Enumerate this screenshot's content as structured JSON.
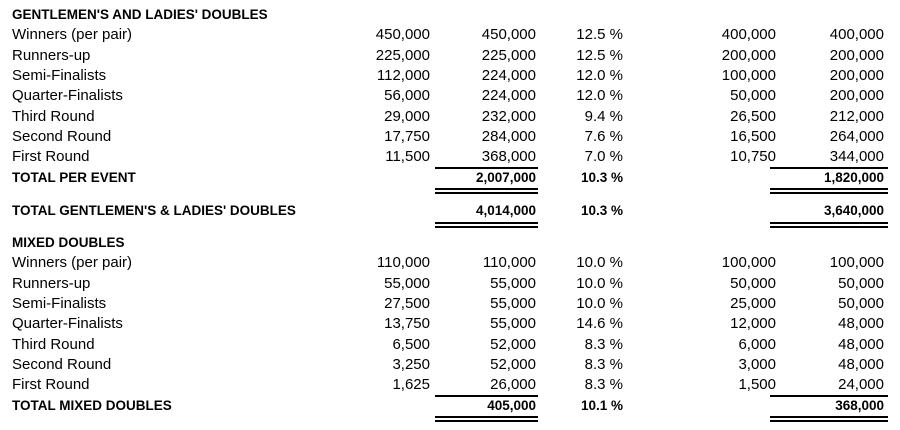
{
  "sections": [
    {
      "title": "GENTLEMEN'S AND LADIES' DOUBLES",
      "rows": [
        {
          "label": "Winners (per pair)",
          "values": [
            "450,000",
            "450,000",
            "12.5 %",
            "400,000",
            "400,000"
          ]
        },
        {
          "label": "Runners-up",
          "values": [
            "225,000",
            "225,000",
            "12.5 %",
            "200,000",
            "200,000"
          ]
        },
        {
          "label": "Semi-Finalists",
          "values": [
            "112,000",
            "224,000",
            "12.0 %",
            "100,000",
            "200,000"
          ]
        },
        {
          "label": "Quarter-Finalists",
          "values": [
            "56,000",
            "224,000",
            "12.0 %",
            "50,000",
            "200,000"
          ]
        },
        {
          "label": "Third Round",
          "values": [
            "29,000",
            "232,000",
            "9.4 %",
            "26,500",
            "212,000"
          ]
        },
        {
          "label": "Second Round",
          "values": [
            "17,750",
            "284,000",
            "7.6 %",
            "16,500",
            "264,000"
          ]
        },
        {
          "label": "First Round",
          "values": [
            "11,500",
            "368,000",
            "7.0 %",
            "10,750",
            "344,000"
          ]
        }
      ],
      "total": {
        "label": "TOTAL PER EVENT",
        "values": [
          "",
          "2,007,000",
          "10.3 %",
          "",
          "1,820,000"
        ]
      },
      "grand_total": {
        "label": "TOTAL GENTLEMEN'S & LADIES' DOUBLES",
        "values": [
          "",
          "4,014,000",
          "10.3 %",
          "",
          "3,640,000"
        ]
      }
    },
    {
      "title": "MIXED DOUBLES",
      "rows": [
        {
          "label": "Winners (per pair)",
          "values": [
            "110,000",
            "110,000",
            "10.0 %",
            "100,000",
            "100,000"
          ]
        },
        {
          "label": "Runners-up",
          "values": [
            "55,000",
            "55,000",
            "10.0 %",
            "50,000",
            "50,000"
          ]
        },
        {
          "label": "Semi-Finalists",
          "values": [
            "27,500",
            "55,000",
            "10.0 %",
            "25,000",
            "50,000"
          ]
        },
        {
          "label": "Quarter-Finalists",
          "values": [
            "13,750",
            "55,000",
            "14.6 %",
            "12,000",
            "48,000"
          ]
        },
        {
          "label": "Third Round",
          "values": [
            "6,500",
            "52,000",
            "8.3 %",
            "6,000",
            "48,000"
          ]
        },
        {
          "label": "Second Round",
          "values": [
            "3,250",
            "52,000",
            "8.3 %",
            "3,000",
            "48,000"
          ]
        },
        {
          "label": "First Round",
          "values": [
            "1,625",
            "26,000",
            "8.3 %",
            "1,500",
            "24,000"
          ]
        }
      ],
      "total": {
        "label": "TOTAL MIXED DOUBLES",
        "values": [
          "",
          "405,000",
          "10.1 %",
          "",
          "368,000"
        ]
      }
    }
  ]
}
